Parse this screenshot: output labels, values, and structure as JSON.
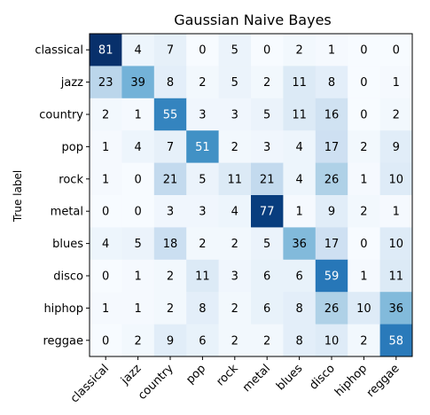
{
  "chart_data": {
    "type": "heatmap",
    "title": "Gaussian Naive Bayes",
    "ylabel": "True label",
    "xlabel": "",
    "row_labels": [
      "classical",
      "jazz",
      "country",
      "pop",
      "rock",
      "metal",
      "blues",
      "disco",
      "hiphop",
      "reggae"
    ],
    "col_labels": [
      "classical",
      "jazz",
      "country",
      "pop",
      "rock",
      "metal",
      "blues",
      "disco",
      "hiphop",
      "reggae"
    ],
    "values": [
      [
        81,
        4,
        7,
        0,
        5,
        0,
        2,
        1,
        0,
        0
      ],
      [
        23,
        39,
        8,
        2,
        5,
        2,
        11,
        8,
        0,
        1
      ],
      [
        2,
        1,
        55,
        3,
        3,
        5,
        11,
        16,
        0,
        2
      ],
      [
        1,
        4,
        7,
        51,
        2,
        3,
        4,
        17,
        2,
        9
      ],
      [
        1,
        0,
        21,
        5,
        11,
        21,
        4,
        26,
        1,
        10
      ],
      [
        0,
        0,
        3,
        3,
        4,
        77,
        1,
        9,
        2,
        1
      ],
      [
        4,
        5,
        18,
        2,
        2,
        5,
        36,
        17,
        0,
        10
      ],
      [
        0,
        1,
        2,
        11,
        3,
        6,
        6,
        59,
        1,
        11
      ],
      [
        1,
        1,
        2,
        8,
        2,
        6,
        8,
        26,
        10,
        36
      ],
      [
        0,
        2,
        9,
        6,
        2,
        2,
        8,
        10,
        2,
        58
      ]
    ],
    "colormap": "Blues",
    "value_range": [
      0,
      81
    ],
    "grid": false
  }
}
